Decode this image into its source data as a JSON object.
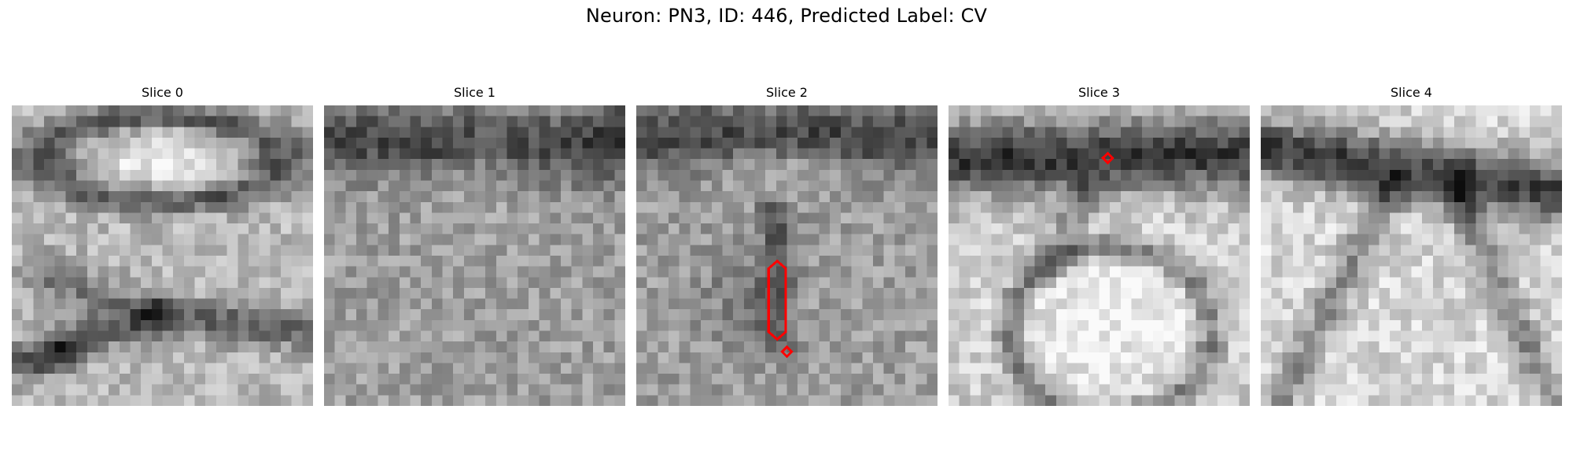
{
  "figure": {
    "title": "Neuron: PN3, ID: 446, Predicted Label: CV"
  },
  "slices": [
    {
      "title": "Slice 0"
    },
    {
      "title": "Slice 1"
    },
    {
      "title": "Slice 2",
      "annotations": [
        {
          "shape": "vertical-elongated-diamond",
          "color": "#ff0000"
        },
        {
          "shape": "small-diamond",
          "color": "#ff0000"
        }
      ]
    },
    {
      "title": "Slice 3",
      "annotations": [
        {
          "shape": "small-diamond",
          "color": "#ff0000"
        }
      ]
    },
    {
      "title": "Slice 4"
    }
  ]
}
